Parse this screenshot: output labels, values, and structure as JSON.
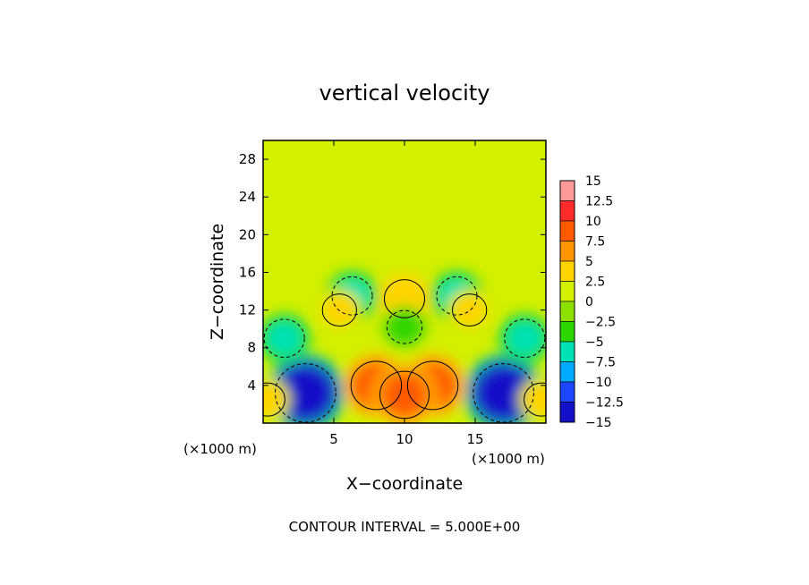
{
  "chart_data": {
    "type": "heatmap",
    "title": "vertical velocity",
    "xlabel": "X−coordinate",
    "ylabel": "Z−coordinate",
    "x_unit": "(×1000 m)",
    "y_unit": "(×1000 m)",
    "xlim": [
      0,
      20
    ],
    "ylim": [
      0,
      30
    ],
    "x_ticks": [
      5,
      10,
      15
    ],
    "y_ticks": [
      4,
      8,
      12,
      16,
      20,
      24,
      28
    ],
    "colorbar": {
      "labels": [
        "15",
        "12.5",
        "10",
        "7.5",
        "5",
        "2.5",
        "0",
        "−2.5",
        "−5",
        "−7.5",
        "−10",
        "−12.5",
        "−15"
      ],
      "colors": [
        "#ff9a9a",
        "#ff2a2a",
        "#ff5a00",
        "#ff9600",
        "#ffd400",
        "#d2f000",
        "#8ee000",
        "#2ed600",
        "#00e2b4",
        "#00aaff",
        "#1c46ff",
        "#1410c8",
        "#7600b4"
      ]
    },
    "features": [
      {
        "x": 3.0,
        "z": 3.2,
        "value": -13
      },
      {
        "x": 17.0,
        "z": 3.2,
        "value": -13
      },
      {
        "x": 8.0,
        "z": 4.0,
        "value": 9
      },
      {
        "x": 12.0,
        "z": 4.0,
        "value": 9
      },
      {
        "x": 10.0,
        "z": 3.0,
        "value": 8.5
      },
      {
        "x": 10.0,
        "z": 13.2,
        "value": 5
      },
      {
        "x": 6.3,
        "z": 13.5,
        "value": -5
      },
      {
        "x": 13.7,
        "z": 13.5,
        "value": -5
      },
      {
        "x": 10.0,
        "z": 10.2,
        "value": -3
      },
      {
        "x": 5.4,
        "z": 12.0,
        "value": 2.6
      },
      {
        "x": 14.6,
        "z": 12.0,
        "value": 2.6
      },
      {
        "x": 1.5,
        "z": 9.0,
        "value": -5
      },
      {
        "x": 18.5,
        "z": 9.0,
        "value": -5
      },
      {
        "x": 0.3,
        "z": 2.5,
        "value": 3
      },
      {
        "x": 19.7,
        "z": 2.5,
        "value": 3
      }
    ]
  },
  "footer": {
    "contour_interval": "CONTOUR INTERVAL = 5.000E+00"
  }
}
